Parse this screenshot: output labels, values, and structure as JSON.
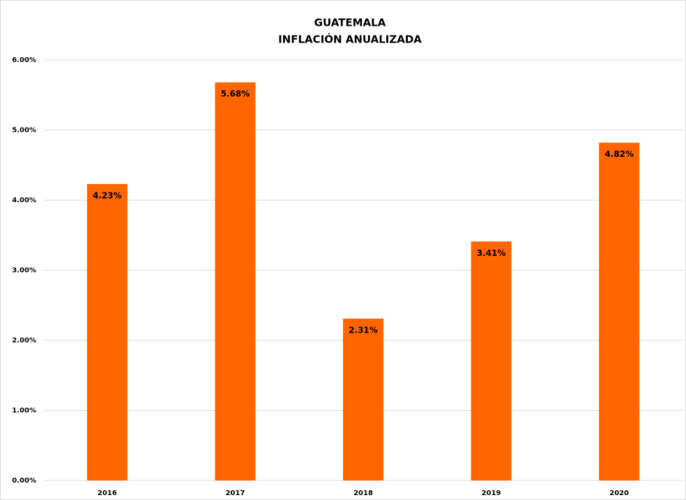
{
  "chart_data": {
    "type": "bar",
    "title": "GUATEMALA",
    "subtitle": "INFLACIÓN ANUALIZADA",
    "categories": [
      "2016",
      "2017",
      "2018",
      "2019",
      "2020"
    ],
    "values": [
      4.23,
      5.68,
      2.31,
      3.41,
      4.82
    ],
    "value_labels": [
      "4.23%",
      "5.68%",
      "2.31%",
      "3.41%",
      "4.82%"
    ],
    "color": "#ff6600",
    "ylim": [
      0,
      6
    ],
    "yticks": [
      {
        "value": 0,
        "label": "0.00%"
      },
      {
        "value": 1,
        "label": "1.00%"
      },
      {
        "value": 2,
        "label": "2.00%"
      },
      {
        "value": 3,
        "label": "3.00%"
      },
      {
        "value": 4,
        "label": "4.00%"
      },
      {
        "value": 5,
        "label": "5.00%"
      },
      {
        "value": 6,
        "label": "6.00%"
      }
    ],
    "grid": true
  }
}
